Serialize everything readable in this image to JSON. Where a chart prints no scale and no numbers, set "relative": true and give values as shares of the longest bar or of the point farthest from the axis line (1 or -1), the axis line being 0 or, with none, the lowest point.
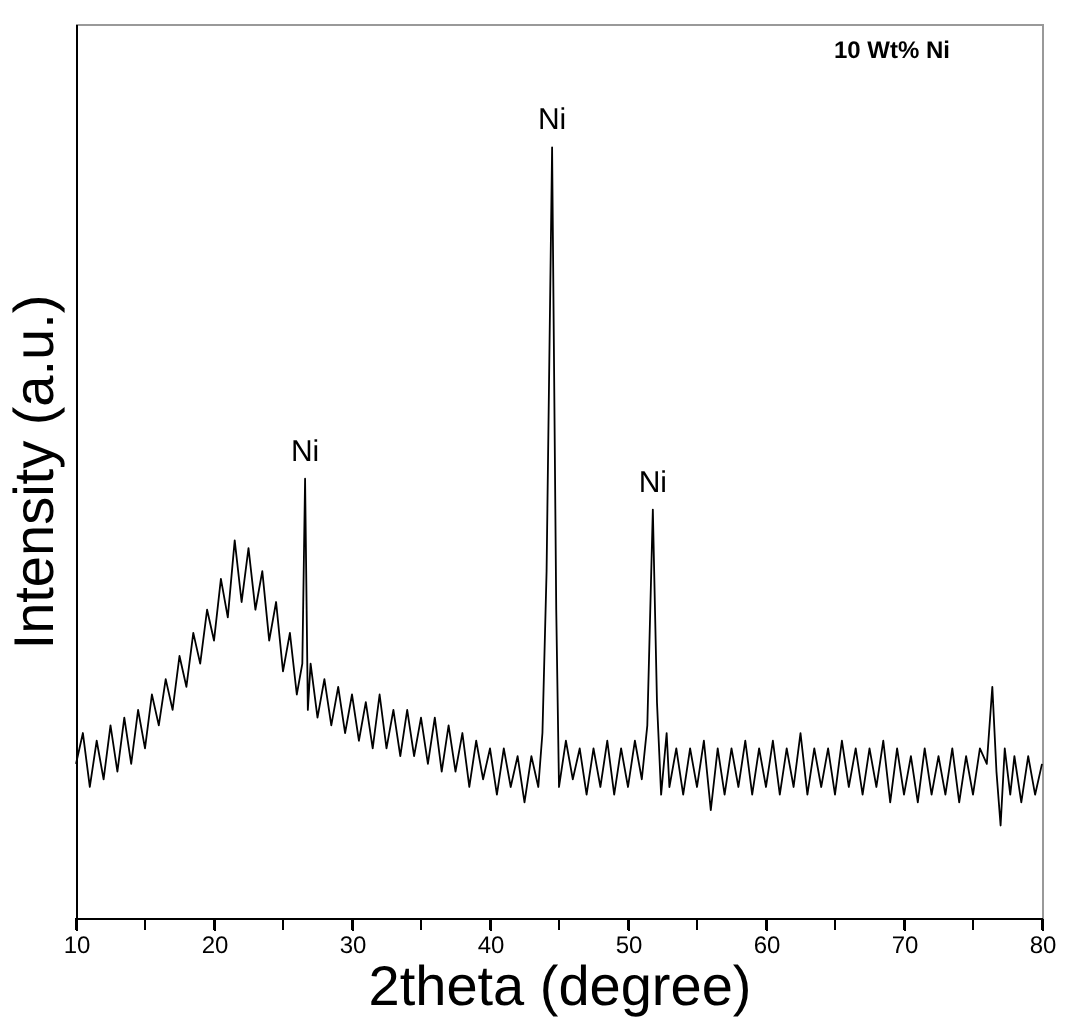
{
  "chart_data": {
    "type": "line",
    "relative": true,
    "xlabel": "2theta (degree)",
    "ylabel": "Intensity (a.u.)",
    "xlim": [
      10,
      80
    ],
    "xticks": [
      10,
      {
        "value": 15,
        "label": null
      },
      20,
      {
        "value": 25,
        "label": null
      },
      30,
      {
        "value": 35,
        "label": null
      },
      40,
      {
        "value": 45,
        "label": null
      },
      50,
      {
        "value": 55,
        "label": null
      },
      60,
      {
        "value": 65,
        "label": null
      },
      70,
      {
        "value": 75,
        "label": null
      },
      80
    ],
    "grid": false,
    "tick_labels": "x",
    "marker": "none",
    "line_style": "solid",
    "annotations": [
      {
        "text": "Ni",
        "x": 26.6,
        "y": 0.57
      },
      {
        "text": "Ni",
        "x": 44.5,
        "y": 1.0
      },
      {
        "text": "Ni",
        "x": 51.8,
        "y": 0.53
      },
      "10 Wt% Ni"
    ],
    "series": [
      {
        "color": "#000000",
        "x": [
          10,
          10.5,
          11,
          11.5,
          12,
          12.5,
          13,
          13.5,
          14,
          14.5,
          15,
          15.5,
          16,
          16.5,
          17,
          17.5,
          18,
          18.5,
          19,
          19.5,
          20,
          20.5,
          21,
          21.5,
          22,
          22.5,
          23,
          23.5,
          24,
          24.5,
          25,
          25.5,
          26,
          26.4,
          26.6,
          26.8,
          27,
          27.5,
          28,
          28.5,
          29,
          29.5,
          30,
          30.5,
          31,
          31.5,
          32,
          32.5,
          33,
          33.5,
          34,
          34.5,
          35,
          35.5,
          36,
          36.5,
          37,
          37.5,
          38,
          38.5,
          39,
          39.5,
          40,
          40.5,
          41,
          41.5,
          42,
          42.5,
          43,
          43.5,
          43.8,
          44.1,
          44.5,
          44.8,
          45,
          45.5,
          46,
          46.5,
          47,
          47.5,
          48,
          48.5,
          49,
          49.5,
          50,
          50.5,
          51,
          51.4,
          51.8,
          52.1,
          52.4,
          52.8,
          53,
          53.5,
          54,
          54.5,
          55,
          55.5,
          56,
          56.5,
          57,
          57.5,
          58,
          58.5,
          59,
          59.5,
          60,
          60.5,
          61,
          61.5,
          62,
          62.5,
          63,
          63.5,
          64,
          64.5,
          65,
          65.5,
          66,
          66.5,
          67,
          67.5,
          68,
          68.5,
          69,
          69.5,
          70,
          70.5,
          71,
          71.5,
          72,
          72.5,
          73,
          73.5,
          74,
          74.5,
          75,
          75.5,
          76,
          76.4,
          76.7,
          77,
          77.3,
          77.7,
          78,
          78.5,
          79,
          79.5,
          80
        ],
        "values": [
          0.2,
          0.24,
          0.17,
          0.23,
          0.18,
          0.25,
          0.19,
          0.26,
          0.2,
          0.27,
          0.22,
          0.29,
          0.25,
          0.31,
          0.27,
          0.34,
          0.3,
          0.37,
          0.33,
          0.4,
          0.36,
          0.44,
          0.39,
          0.49,
          0.41,
          0.48,
          0.4,
          0.45,
          0.36,
          0.41,
          0.32,
          0.37,
          0.29,
          0.33,
          0.57,
          0.27,
          0.33,
          0.26,
          0.31,
          0.25,
          0.3,
          0.24,
          0.29,
          0.23,
          0.28,
          0.22,
          0.29,
          0.22,
          0.27,
          0.21,
          0.27,
          0.21,
          0.26,
          0.2,
          0.26,
          0.19,
          0.25,
          0.19,
          0.24,
          0.17,
          0.23,
          0.18,
          0.22,
          0.16,
          0.22,
          0.17,
          0.21,
          0.15,
          0.21,
          0.17,
          0.24,
          0.45,
          1.0,
          0.4,
          0.17,
          0.23,
          0.18,
          0.22,
          0.16,
          0.22,
          0.17,
          0.23,
          0.16,
          0.22,
          0.17,
          0.23,
          0.18,
          0.25,
          0.53,
          0.28,
          0.16,
          0.24,
          0.17,
          0.22,
          0.16,
          0.22,
          0.17,
          0.23,
          0.14,
          0.22,
          0.16,
          0.22,
          0.17,
          0.23,
          0.16,
          0.22,
          0.17,
          0.23,
          0.16,
          0.22,
          0.17,
          0.24,
          0.16,
          0.22,
          0.17,
          0.22,
          0.16,
          0.23,
          0.17,
          0.22,
          0.16,
          0.22,
          0.17,
          0.23,
          0.15,
          0.22,
          0.16,
          0.21,
          0.15,
          0.22,
          0.16,
          0.21,
          0.16,
          0.22,
          0.15,
          0.21,
          0.16,
          0.22,
          0.2,
          0.3,
          0.19,
          0.12,
          0.22,
          0.16,
          0.21,
          0.15,
          0.21,
          0.16,
          0.2
        ]
      }
    ]
  }
}
